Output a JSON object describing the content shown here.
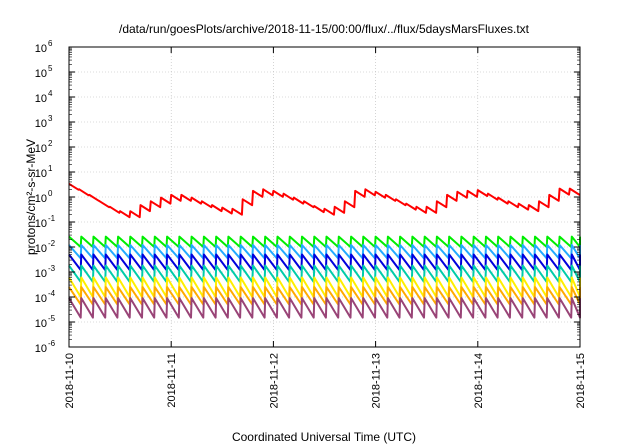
{
  "chart_data": {
    "type": "line",
    "title": "/data/run/goesPlots/archive/2018-11-15/00:00/flux/../flux/5daysMarsFluxes.txt",
    "xlabel": "Coordinated Universal Time (UTC)",
    "ylabel": "protons/cm²-s-sr-MeV",
    "y_scale": "log",
    "ylim": [
      1e-06,
      1000000.0
    ],
    "y_ticks": [
      -6,
      -5,
      -4,
      -3,
      -2,
      -1,
      0,
      1,
      2,
      3,
      4,
      5,
      6
    ],
    "x_axis": "dates",
    "xlim": [
      "2018-11-10",
      "2018-11-15"
    ],
    "x_tick_labels": [
      "2018-11-10",
      "2018-11-11",
      "2018-11-12",
      "2018-11-13",
      "2018-11-14",
      "2018-11-15"
    ],
    "grid": true,
    "legend": "none",
    "series": [
      {
        "color": "#ff0000",
        "style": "sawtooth",
        "sawtooth_period_days": 0.1,
        "points": [
          [
            "2018-11-10 00:00",
            2.5
          ],
          [
            "2018-11-10 02:24",
            1.5
          ],
          [
            "2018-11-10 04:48",
            0.9
          ],
          [
            "2018-11-10 07:12",
            0.5
          ],
          [
            "2018-11-10 09:36",
            0.3
          ],
          [
            "2018-11-10 12:00",
            0.2
          ],
          [
            "2018-11-10 14:24",
            0.2
          ],
          [
            "2018-11-10 16:48",
            0.35
          ],
          [
            "2018-11-10 19:12",
            0.5
          ],
          [
            "2018-11-10 21:36",
            0.7
          ],
          [
            "2018-11-11 00:00",
            0.9
          ],
          [
            "2018-11-11 02:24",
            0.9
          ],
          [
            "2018-11-11 04:48",
            0.7
          ],
          [
            "2018-11-11 07:12",
            0.5
          ],
          [
            "2018-11-11 09:36",
            0.35
          ],
          [
            "2018-11-11 12:00",
            0.28
          ],
          [
            "2018-11-11 14:24",
            0.25
          ],
          [
            "2018-11-11 16:48",
            0.6
          ],
          [
            "2018-11-11 19:12",
            1.3
          ],
          [
            "2018-11-11 21:36",
            1.5
          ],
          [
            "2018-11-12 00:00",
            1.3
          ],
          [
            "2018-11-12 02:24",
            1.0
          ],
          [
            "2018-11-12 04:48",
            0.7
          ],
          [
            "2018-11-12 07:12",
            0.5
          ],
          [
            "2018-11-12 09:36",
            0.32
          ],
          [
            "2018-11-12 12:00",
            0.25
          ],
          [
            "2018-11-12 14:24",
            0.3
          ],
          [
            "2018-11-12 16:48",
            0.5
          ],
          [
            "2018-11-12 19:12",
            1.3
          ],
          [
            "2018-11-12 21:36",
            1.5
          ],
          [
            "2018-11-13 00:00",
            1.2
          ],
          [
            "2018-11-13 02:24",
            0.9
          ],
          [
            "2018-11-13 04:48",
            0.6
          ],
          [
            "2018-11-13 07:12",
            0.4
          ],
          [
            "2018-11-13 09:36",
            0.3
          ],
          [
            "2018-11-13 12:00",
            0.3
          ],
          [
            "2018-11-13 14:24",
            0.5
          ],
          [
            "2018-11-13 16:48",
            0.9
          ],
          [
            "2018-11-13 19:12",
            1.2
          ],
          [
            "2018-11-13 21:36",
            1.3
          ],
          [
            "2018-11-14 00:00",
            1.4
          ],
          [
            "2018-11-14 02:24",
            1.0
          ],
          [
            "2018-11-14 04:48",
            0.7
          ],
          [
            "2018-11-14 07:12",
            0.5
          ],
          [
            "2018-11-14 09:36",
            0.4
          ],
          [
            "2018-11-14 12:00",
            0.35
          ],
          [
            "2018-11-14 14:24",
            0.5
          ],
          [
            "2018-11-14 16:48",
            0.9
          ],
          [
            "2018-11-14 19:12",
            1.6
          ],
          [
            "2018-11-14 21:36",
            1.6
          ],
          [
            "2018-11-15 00:00",
            1.2
          ]
        ]
      },
      {
        "color": "#00ee00",
        "style": "sawtooth",
        "sawtooth_period_days": 0.12,
        "low": 0.01,
        "high": 0.026
      },
      {
        "color": "#22aaff",
        "style": "sawtooth",
        "sawtooth_period_days": 0.12,
        "low": 0.0035,
        "high": 0.012
      },
      {
        "color": "#0000dd",
        "style": "sawtooth",
        "sawtooth_period_days": 0.12,
        "low": 0.0012,
        "high": 0.005
      },
      {
        "color": "#00ccaa",
        "style": "sawtooth",
        "sawtooth_period_days": 0.12,
        "low": 0.0004,
        "high": 0.0018
      },
      {
        "color": "#ffee00",
        "style": "sawtooth",
        "sawtooth_period_days": 0.12,
        "low": 0.0001,
        "high": 0.0006
      },
      {
        "color": "#ffaa00",
        "style": "sawtooth",
        "sawtooth_period_days": 0.12,
        "low": 5e-05,
        "high": 0.00025
      },
      {
        "color": "#994477",
        "style": "sawtooth",
        "sawtooth_period_days": 0.12,
        "low": 1.5e-05,
        "high": 9e-05
      }
    ]
  }
}
